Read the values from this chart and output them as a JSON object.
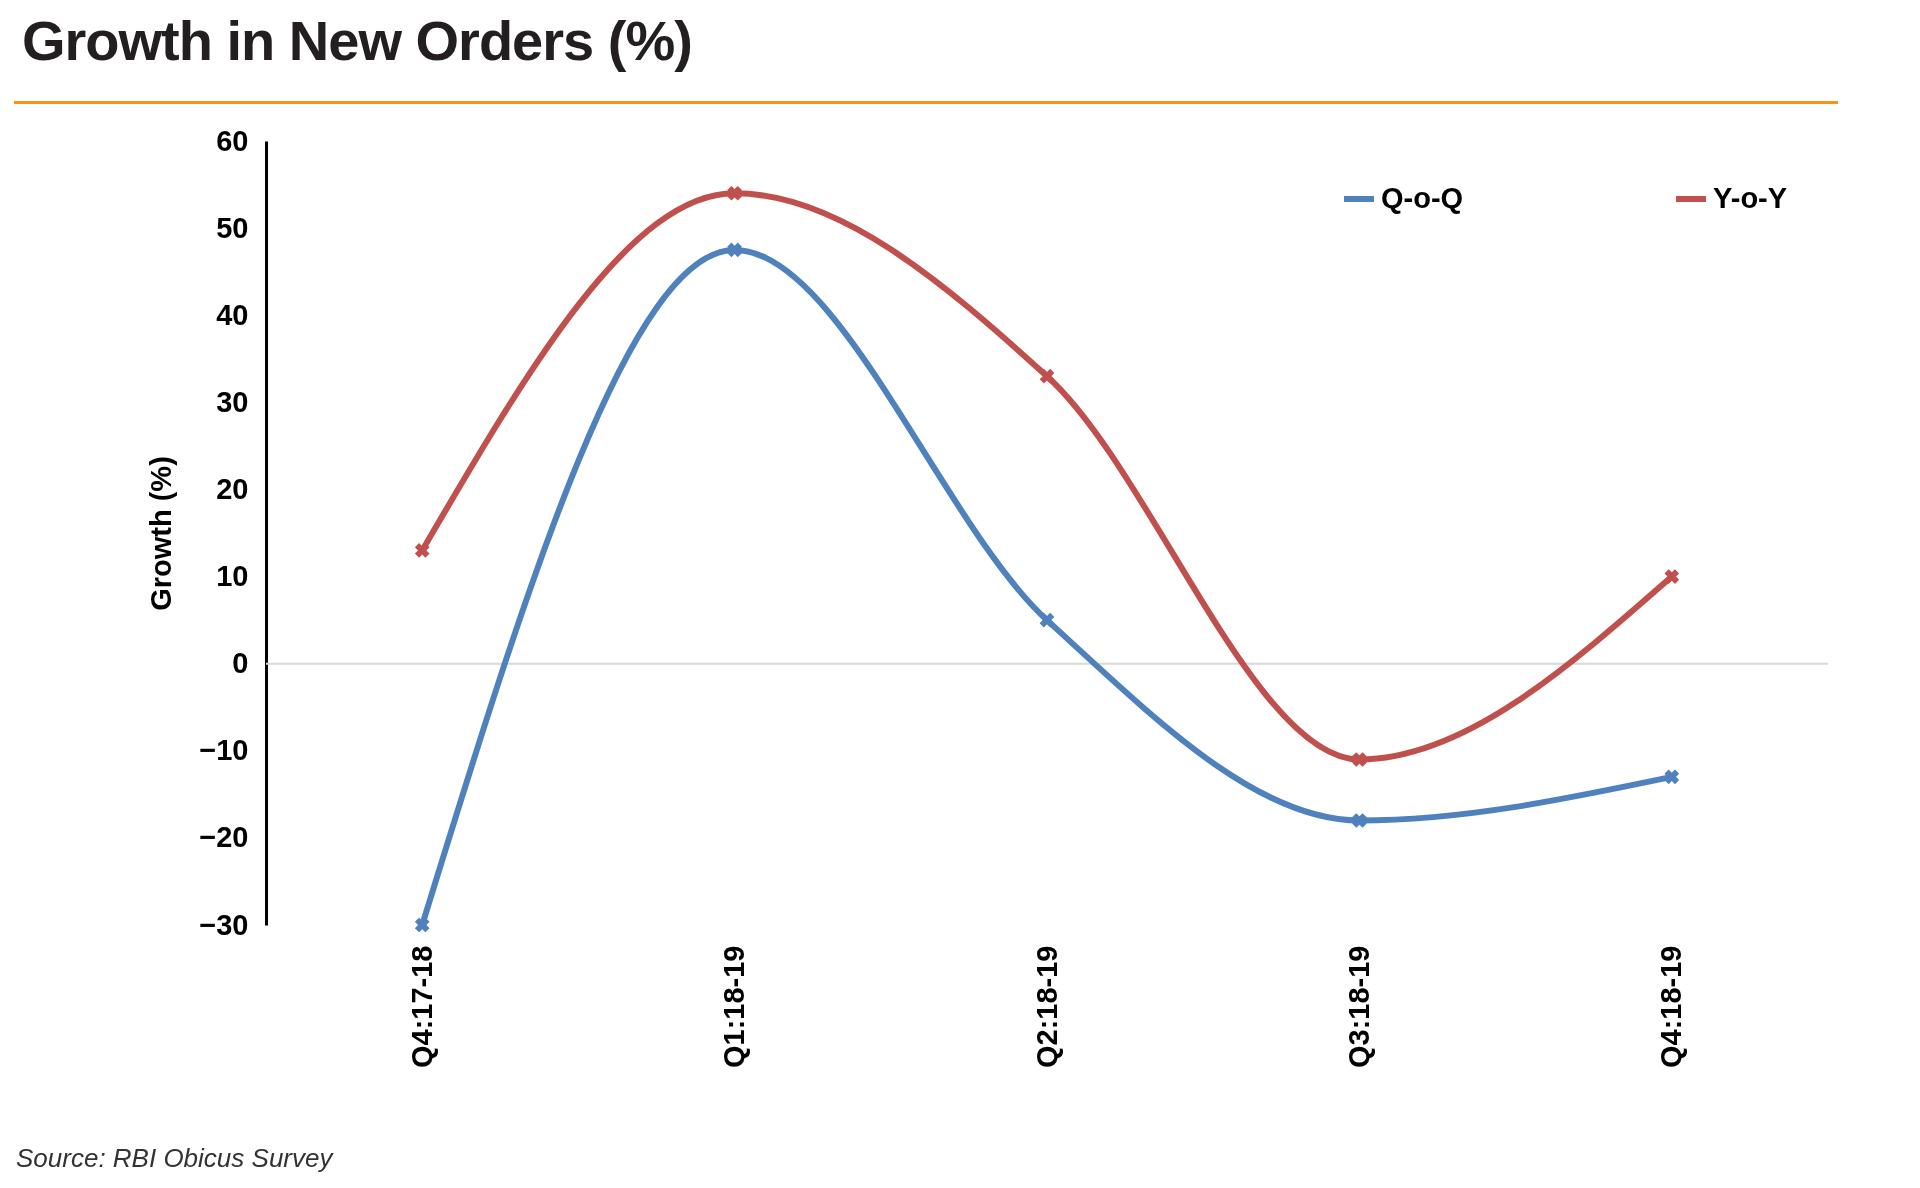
{
  "chart_data": {
    "type": "line",
    "title": "Growth in New Orders (%)",
    "ylabel": "Growth (%)",
    "categories": [
      "Q4:17-18",
      "Q1:18-19",
      "Q2:18-19",
      "Q3:18-19",
      "Q4:18-19"
    ],
    "series": [
      {
        "name": "Q-o-Q",
        "color": "#4f81bd",
        "values": [
          -30,
          47.5,
          5,
          -18,
          -13
        ]
      },
      {
        "name": "Y-o-Y",
        "color": "#c0504d",
        "values": [
          13,
          54,
          33,
          -11,
          10
        ]
      }
    ],
    "ylim": [
      -30,
      60
    ],
    "yticks": [
      -30,
      -20,
      -10,
      0,
      10,
      20,
      30,
      40,
      50,
      60
    ],
    "ref_lines": [
      {
        "axis": "y",
        "value": 0,
        "color": "#d9d9d9"
      }
    ],
    "legend": "top right",
    "marker": "cross",
    "line_style": "solid",
    "annotations": [
      "Source: RBI Obicus Survey"
    ]
  }
}
